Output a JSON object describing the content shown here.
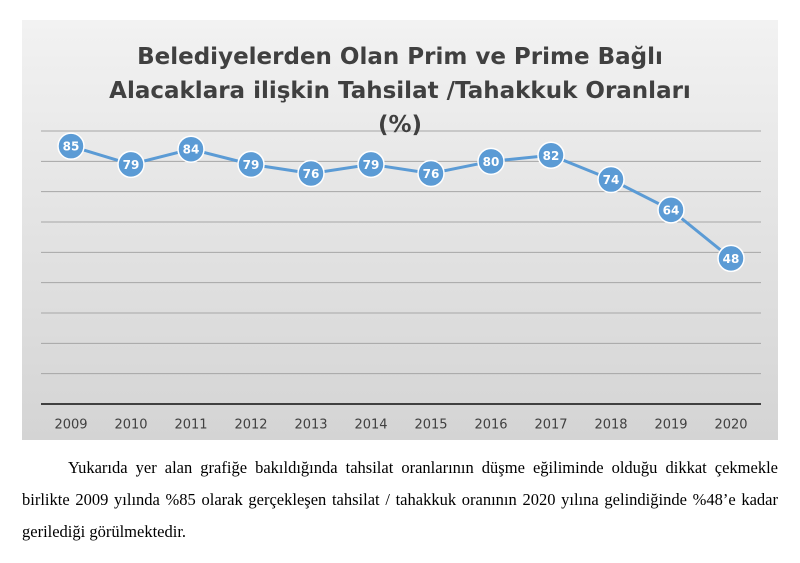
{
  "chart_data": {
    "type": "line",
    "title": "Belediyelerden Olan Prim ve Prime Bağlı\nAlacaklara ilişkin Tahsilat /Tahakkuk Oranları\n(%)",
    "categories": [
      "2009",
      "2010",
      "2011",
      "2012",
      "2013",
      "2014",
      "2015",
      "2016",
      "2017",
      "2018",
      "2019",
      "2020"
    ],
    "values": [
      85,
      79,
      84,
      79,
      76,
      79,
      76,
      80,
      82,
      74,
      64,
      48
    ],
    "color": "#5b9bd5",
    "ylim": [
      0,
      90
    ],
    "yticks": [
      10,
      20,
      30,
      40,
      50,
      60,
      70,
      80,
      90
    ],
    "grid": true
  },
  "paragraph": "Yukarıda yer alan grafiğe bakıldığında tahsilat oranlarının düşme eğiliminde olduğu dikkat çekmekle birlikte 2009 yılında %85 olarak gerçekleşen tahsilat / tahakkuk oranının 2020 yılına gelindiğinde %48’e kadar gerilediği görülmektedir."
}
